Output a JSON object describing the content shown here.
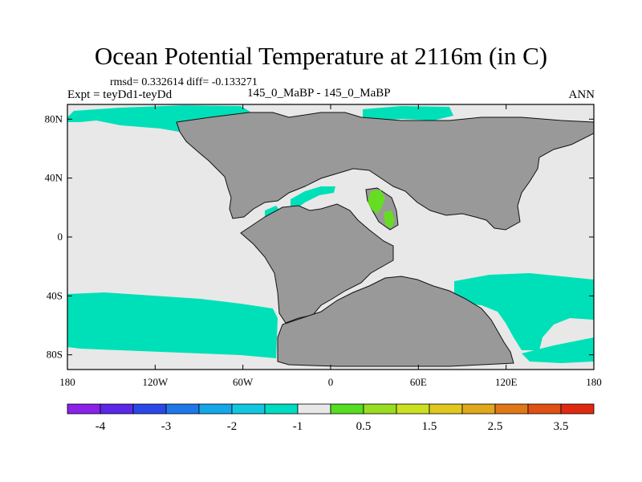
{
  "title": "Ocean Potential Temperature at 2116m (in C)",
  "stats_line": "rmsd= 0.332614  diff= -0.133271",
  "experiment_label": "Expt = teyDd1-teyDd",
  "case_label": "145_0_MaBP - 145_0_MaBP",
  "season_label": "ANN",
  "map": {
    "projection": "cylindrical equidistant",
    "lon_range": [
      -180,
      180
    ],
    "lat_range": [
      -90,
      90
    ],
    "colors": {
      "land": "#999999",
      "near_zero": "#e8e8e8",
      "negative": "#00e0b8",
      "positive": "#66dd22"
    },
    "lat_tick_labels": [
      "80N",
      "40N",
      "0",
      "40S",
      "80S"
    ],
    "lat_tick_values": [
      80,
      40,
      0,
      -40,
      -80
    ],
    "lon_tick_labels": [
      "180",
      "120W",
      "60W",
      "0",
      "60E",
      "120E",
      "180"
    ],
    "lon_tick_values": [
      -180,
      -120,
      -60,
      0,
      60,
      120,
      180
    ]
  },
  "colorbar": {
    "colors": [
      "#8a22ea",
      "#5a28e6",
      "#2a48e8",
      "#1e78e8",
      "#14a8e8",
      "#12c8e0",
      "#00dcc0",
      "#e8e8e8",
      "#55dd22",
      "#99dd22",
      "#cce022",
      "#e0c81e",
      "#e0a81c",
      "#e07818",
      "#e05014",
      "#e02a10"
    ],
    "labels": [
      "-4",
      "-3",
      "-2",
      "-1",
      "0.5",
      "1.5",
      "2.5",
      "3.5"
    ],
    "label_values": [
      -4,
      -3,
      -2,
      -1,
      0.5,
      1.5,
      2.5,
      3.5
    ]
  }
}
